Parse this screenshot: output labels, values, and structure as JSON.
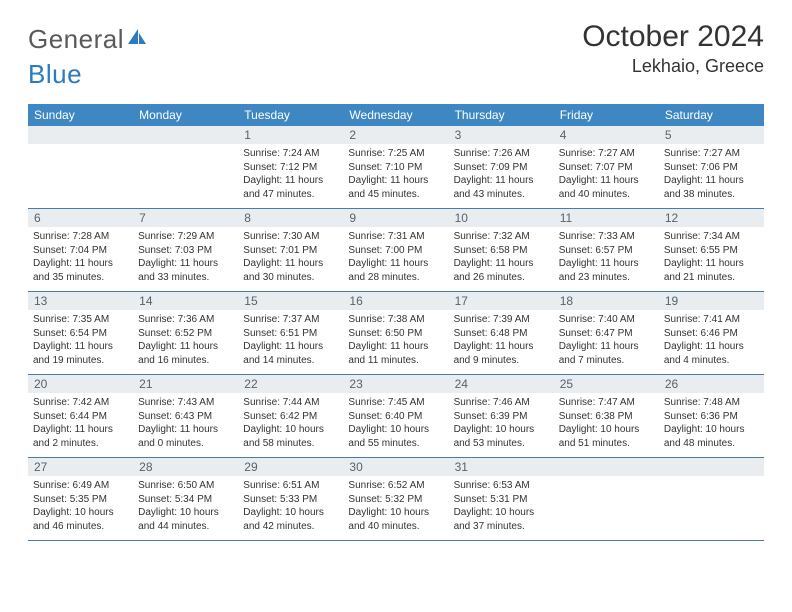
{
  "logo": {
    "word1": "General",
    "word2": "Blue"
  },
  "title": "October 2024",
  "location": "Lekhaio, Greece",
  "colors": {
    "header_bg": "#3e87c3",
    "header_text": "#ffffff",
    "daynum_bg": "#e9edf0",
    "daynum_text": "#55636e",
    "body_text": "#333333",
    "row_border": "#4a7ca8",
    "logo_gray": "#5a5a5a",
    "logo_blue": "#2b7bbf"
  },
  "weekdays": [
    "Sunday",
    "Monday",
    "Tuesday",
    "Wednesday",
    "Thursday",
    "Friday",
    "Saturday"
  ],
  "weeks": [
    [
      {
        "n": "",
        "sunrise": "",
        "sunset": "",
        "daylight": ""
      },
      {
        "n": "",
        "sunrise": "",
        "sunset": "",
        "daylight": ""
      },
      {
        "n": "1",
        "sunrise": "Sunrise: 7:24 AM",
        "sunset": "Sunset: 7:12 PM",
        "daylight": "Daylight: 11 hours and 47 minutes."
      },
      {
        "n": "2",
        "sunrise": "Sunrise: 7:25 AM",
        "sunset": "Sunset: 7:10 PM",
        "daylight": "Daylight: 11 hours and 45 minutes."
      },
      {
        "n": "3",
        "sunrise": "Sunrise: 7:26 AM",
        "sunset": "Sunset: 7:09 PM",
        "daylight": "Daylight: 11 hours and 43 minutes."
      },
      {
        "n": "4",
        "sunrise": "Sunrise: 7:27 AM",
        "sunset": "Sunset: 7:07 PM",
        "daylight": "Daylight: 11 hours and 40 minutes."
      },
      {
        "n": "5",
        "sunrise": "Sunrise: 7:27 AM",
        "sunset": "Sunset: 7:06 PM",
        "daylight": "Daylight: 11 hours and 38 minutes."
      }
    ],
    [
      {
        "n": "6",
        "sunrise": "Sunrise: 7:28 AM",
        "sunset": "Sunset: 7:04 PM",
        "daylight": "Daylight: 11 hours and 35 minutes."
      },
      {
        "n": "7",
        "sunrise": "Sunrise: 7:29 AM",
        "sunset": "Sunset: 7:03 PM",
        "daylight": "Daylight: 11 hours and 33 minutes."
      },
      {
        "n": "8",
        "sunrise": "Sunrise: 7:30 AM",
        "sunset": "Sunset: 7:01 PM",
        "daylight": "Daylight: 11 hours and 30 minutes."
      },
      {
        "n": "9",
        "sunrise": "Sunrise: 7:31 AM",
        "sunset": "Sunset: 7:00 PM",
        "daylight": "Daylight: 11 hours and 28 minutes."
      },
      {
        "n": "10",
        "sunrise": "Sunrise: 7:32 AM",
        "sunset": "Sunset: 6:58 PM",
        "daylight": "Daylight: 11 hours and 26 minutes."
      },
      {
        "n": "11",
        "sunrise": "Sunrise: 7:33 AM",
        "sunset": "Sunset: 6:57 PM",
        "daylight": "Daylight: 11 hours and 23 minutes."
      },
      {
        "n": "12",
        "sunrise": "Sunrise: 7:34 AM",
        "sunset": "Sunset: 6:55 PM",
        "daylight": "Daylight: 11 hours and 21 minutes."
      }
    ],
    [
      {
        "n": "13",
        "sunrise": "Sunrise: 7:35 AM",
        "sunset": "Sunset: 6:54 PM",
        "daylight": "Daylight: 11 hours and 19 minutes."
      },
      {
        "n": "14",
        "sunrise": "Sunrise: 7:36 AM",
        "sunset": "Sunset: 6:52 PM",
        "daylight": "Daylight: 11 hours and 16 minutes."
      },
      {
        "n": "15",
        "sunrise": "Sunrise: 7:37 AM",
        "sunset": "Sunset: 6:51 PM",
        "daylight": "Daylight: 11 hours and 14 minutes."
      },
      {
        "n": "16",
        "sunrise": "Sunrise: 7:38 AM",
        "sunset": "Sunset: 6:50 PM",
        "daylight": "Daylight: 11 hours and 11 minutes."
      },
      {
        "n": "17",
        "sunrise": "Sunrise: 7:39 AM",
        "sunset": "Sunset: 6:48 PM",
        "daylight": "Daylight: 11 hours and 9 minutes."
      },
      {
        "n": "18",
        "sunrise": "Sunrise: 7:40 AM",
        "sunset": "Sunset: 6:47 PM",
        "daylight": "Daylight: 11 hours and 7 minutes."
      },
      {
        "n": "19",
        "sunrise": "Sunrise: 7:41 AM",
        "sunset": "Sunset: 6:46 PM",
        "daylight": "Daylight: 11 hours and 4 minutes."
      }
    ],
    [
      {
        "n": "20",
        "sunrise": "Sunrise: 7:42 AM",
        "sunset": "Sunset: 6:44 PM",
        "daylight": "Daylight: 11 hours and 2 minutes."
      },
      {
        "n": "21",
        "sunrise": "Sunrise: 7:43 AM",
        "sunset": "Sunset: 6:43 PM",
        "daylight": "Daylight: 11 hours and 0 minutes."
      },
      {
        "n": "22",
        "sunrise": "Sunrise: 7:44 AM",
        "sunset": "Sunset: 6:42 PM",
        "daylight": "Daylight: 10 hours and 58 minutes."
      },
      {
        "n": "23",
        "sunrise": "Sunrise: 7:45 AM",
        "sunset": "Sunset: 6:40 PM",
        "daylight": "Daylight: 10 hours and 55 minutes."
      },
      {
        "n": "24",
        "sunrise": "Sunrise: 7:46 AM",
        "sunset": "Sunset: 6:39 PM",
        "daylight": "Daylight: 10 hours and 53 minutes."
      },
      {
        "n": "25",
        "sunrise": "Sunrise: 7:47 AM",
        "sunset": "Sunset: 6:38 PM",
        "daylight": "Daylight: 10 hours and 51 minutes."
      },
      {
        "n": "26",
        "sunrise": "Sunrise: 7:48 AM",
        "sunset": "Sunset: 6:36 PM",
        "daylight": "Daylight: 10 hours and 48 minutes."
      }
    ],
    [
      {
        "n": "27",
        "sunrise": "Sunrise: 6:49 AM",
        "sunset": "Sunset: 5:35 PM",
        "daylight": "Daylight: 10 hours and 46 minutes."
      },
      {
        "n": "28",
        "sunrise": "Sunrise: 6:50 AM",
        "sunset": "Sunset: 5:34 PM",
        "daylight": "Daylight: 10 hours and 44 minutes."
      },
      {
        "n": "29",
        "sunrise": "Sunrise: 6:51 AM",
        "sunset": "Sunset: 5:33 PM",
        "daylight": "Daylight: 10 hours and 42 minutes."
      },
      {
        "n": "30",
        "sunrise": "Sunrise: 6:52 AM",
        "sunset": "Sunset: 5:32 PM",
        "daylight": "Daylight: 10 hours and 40 minutes."
      },
      {
        "n": "31",
        "sunrise": "Sunrise: 6:53 AM",
        "sunset": "Sunset: 5:31 PM",
        "daylight": "Daylight: 10 hours and 37 minutes."
      },
      {
        "n": "",
        "sunrise": "",
        "sunset": "",
        "daylight": ""
      },
      {
        "n": "",
        "sunrise": "",
        "sunset": "",
        "daylight": ""
      }
    ]
  ]
}
